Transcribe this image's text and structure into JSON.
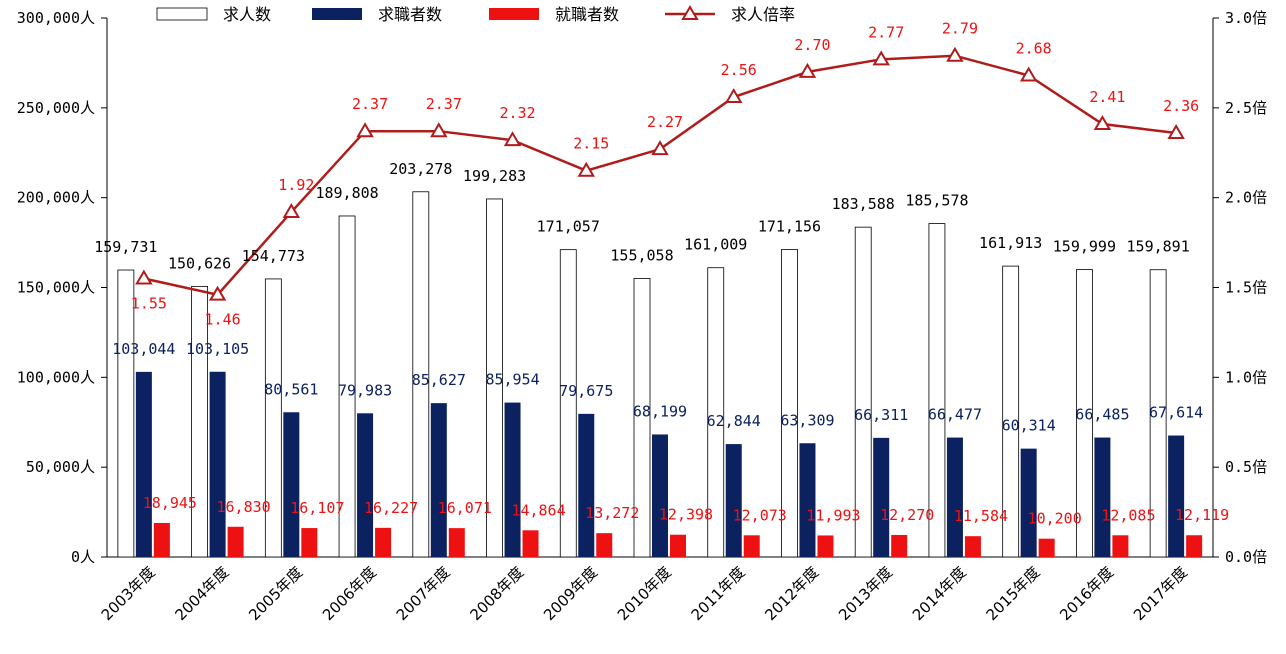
{
  "chart_data": {
    "type": "bar",
    "categories": [
      "2003年度",
      "2004年度",
      "2005年度",
      "2006年度",
      "2007年度",
      "2008年度",
      "2009年度",
      "2010年度",
      "2011年度",
      "2012年度",
      "2013年度",
      "2014年度",
      "2015年度",
      "2016年度",
      "2017年度"
    ],
    "series": [
      {
        "name": "求人数",
        "type": "bar",
        "axis": "left",
        "color": "#ffffff",
        "values": [
          159731,
          150626,
          154773,
          189808,
          203278,
          199283,
          171057,
          155058,
          161009,
          171156,
          183588,
          185578,
          161913,
          159999,
          159891
        ],
        "labels": [
          "159,731",
          "150,626",
          "154,773",
          "189,808",
          "203,278",
          "199,283",
          "171,057",
          "155,058",
          "161,009",
          "171,156",
          "183,588",
          "185,578",
          "161,913",
          "159,999",
          "159,891"
        ],
        "label_color": "#000000"
      },
      {
        "name": "求職者数",
        "type": "bar",
        "axis": "left",
        "color": "#0b2160",
        "values": [
          103044,
          103105,
          80561,
          79983,
          85627,
          85954,
          79675,
          68199,
          62844,
          63309,
          66311,
          66477,
          60314,
          66485,
          67614
        ],
        "labels": [
          "103,044",
          "103,105",
          "80,561",
          "79,983",
          "85,627",
          "85,954",
          "79,675",
          "68,199",
          "62,844",
          "63,309",
          "66,311",
          "66,477",
          "60,314",
          "66,485",
          "67,614"
        ],
        "label_color": "#0b2160"
      },
      {
        "name": "就職者数",
        "type": "bar",
        "axis": "left",
        "color": "#ee1111",
        "values": [
          18945,
          16830,
          16107,
          16227,
          16071,
          14864,
          13272,
          12398,
          12073,
          11993,
          12270,
          11584,
          10200,
          12085,
          12119
        ],
        "labels": [
          "18,945",
          "16,830",
          "16,107",
          "16,227",
          "16,071",
          "14,864",
          "13,272",
          "12,398",
          "12,073",
          "11,993",
          "12,270",
          "11,584",
          "10,200",
          "12,085",
          "12,119"
        ],
        "label_color": "#ee1111"
      },
      {
        "name": "求人倍率",
        "type": "line",
        "axis": "right",
        "color": "#b01c1c",
        "values": [
          1.55,
          1.46,
          1.92,
          2.37,
          2.37,
          2.32,
          2.15,
          2.27,
          2.56,
          2.7,
          2.77,
          2.79,
          2.68,
          2.41,
          2.36
        ],
        "labels": [
          "1.55",
          "1.46",
          "1.92",
          "2.37",
          "2.37",
          "2.32",
          "2.15",
          "2.27",
          "2.56",
          "2.70",
          "2.77",
          "2.79",
          "2.68",
          "2.41",
          "2.36"
        ],
        "label_color": "#ee1111"
      }
    ],
    "y_left": {
      "ylim": [
        0,
        300000
      ],
      "ticks": [
        "0人",
        "50,000人",
        "100,000人",
        "150,000人",
        "200,000人",
        "250,000人",
        "300,000人"
      ]
    },
    "y_right": {
      "ylim": [
        0,
        3.0
      ],
      "ticks": [
        "0.0倍",
        "0.5倍",
        "1.0倍",
        "1.5倍",
        "2.0倍",
        "2.5倍",
        "3.0倍"
      ]
    },
    "legend_position": "top",
    "grid": false,
    "title": "",
    "xlabel": "",
    "ylabel": ""
  }
}
